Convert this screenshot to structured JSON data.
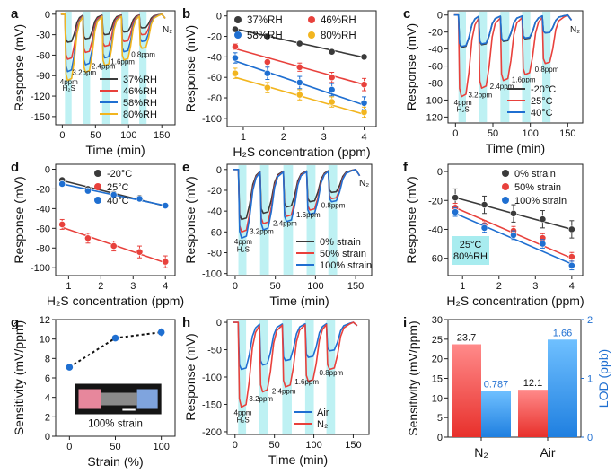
{
  "colors": {
    "black": "#3a3a3a",
    "red": "#e8413c",
    "blue": "#1f6fd1",
    "yellow": "#f2b51f",
    "shade": "#a8ecef"
  },
  "chart_data": [
    {
      "id": "a",
      "type": "line",
      "panel_label": "a",
      "xlabel": "Time (min)",
      "ylabel": "Response (mV)",
      "xlim": [
        -10,
        170
      ],
      "ylim": [
        -162,
        5
      ],
      "xticks": [
        0,
        50,
        100,
        150
      ],
      "yticks": [
        0,
        -30,
        -60,
        -90,
        -120,
        -150
      ],
      "corner_label": "N₂",
      "shade_windows": [
        [
          4,
          14
        ],
        [
          31,
          42
        ],
        [
          60,
          72
        ],
        [
          89,
          100
        ],
        [
          116,
          127
        ]
      ],
      "annotations": [
        {
          "text": "4ppm",
          "x": 10,
          "y": -103
        },
        {
          "text": "H₂S",
          "x": 10,
          "y": -112
        },
        {
          "text": "3.2ppm",
          "x": 33,
          "y": -89
        },
        {
          "text": "2.4ppm",
          "x": 62,
          "y": -80
        },
        {
          "text": "1.6ppm",
          "x": 91,
          "y": -73
        },
        {
          "text": "0.8ppm",
          "x": 122,
          "y": -63
        }
      ],
      "legend": "bottom-right",
      "series": [
        {
          "name": "37%RH",
          "color": "black",
          "depths": [
            -41,
            -36,
            -30,
            -26,
            -20
          ]
        },
        {
          "name": "46%RH",
          "color": "red",
          "depths": [
            -66,
            -56,
            -47,
            -40,
            -30
          ]
        },
        {
          "name": "58%RH",
          "color": "blue",
          "depths": [
            -84,
            -74,
            -64,
            -55,
            -40
          ]
        },
        {
          "name": "80%RH",
          "color": "yellow",
          "depths": [
            -97,
            -85,
            -75,
            -67,
            -50
          ]
        }
      ]
    },
    {
      "id": "b",
      "type": "scatter",
      "panel_label": "b",
      "xlabel": "H₂S concentration (ppm)",
      "ylabel": "Response (mV)",
      "xlim": [
        0.6,
        4.3
      ],
      "ylim": [
        -108,
        5
      ],
      "xticks": [
        1,
        2,
        3,
        4
      ],
      "yticks": [
        0,
        -20,
        -40,
        -60,
        -80,
        -100
      ],
      "legend": "top-two-columns",
      "x": [
        0.8,
        1.6,
        2.4,
        3.2,
        4.0
      ],
      "series": [
        {
          "name": "37%RH",
          "color": "black",
          "values": [
            -13,
            -20,
            -27,
            -35,
            -40
          ],
          "err": [
            1.5,
            1.5,
            1.5,
            2,
            2
          ],
          "fit": [
            -12.7,
            -40.5
          ]
        },
        {
          "name": "46%RH",
          "color": "red",
          "values": [
            -30,
            -45,
            -50,
            -60,
            -67
          ],
          "err": [
            3,
            4,
            4,
            5,
            6
          ],
          "fit": [
            -32,
            -67
          ]
        },
        {
          "name": "58%RH",
          "color": "blue",
          "values": [
            -41,
            -56,
            -65,
            -72,
            -85
          ],
          "err": [
            5,
            6,
            6,
            6,
            6
          ],
          "fit": [
            -44,
            -87
          ]
        },
        {
          "name": "80%RH",
          "color": "yellow",
          "values": [
            -56,
            -70,
            -77,
            -84,
            -94
          ],
          "err": [
            5,
            5,
            5,
            5,
            5
          ],
          "fit": [
            -60,
            -96
          ]
        }
      ]
    },
    {
      "id": "c",
      "type": "line",
      "panel_label": "c",
      "xlabel": "Time (min)",
      "ylabel": "Response (mV)",
      "xlim": [
        -10,
        170
      ],
      "ylim": [
        -127,
        5
      ],
      "xticks": [
        0,
        50,
        100,
        150
      ],
      "yticks": [
        0,
        -20,
        -40,
        -60,
        -80,
        -100,
        -120
      ],
      "corner_label": "N₂",
      "shade_windows": [
        [
          4,
          14
        ],
        [
          31,
          42
        ],
        [
          60,
          72
        ],
        [
          89,
          100
        ],
        [
          116,
          127
        ]
      ],
      "annotations": [
        {
          "text": "4ppm",
          "x": 10,
          "y": -106
        },
        {
          "text": "H₂S",
          "x": 10,
          "y": -114
        },
        {
          "text": "3.2ppm",
          "x": 33,
          "y": -97
        },
        {
          "text": "2.4ppm",
          "x": 62,
          "y": -87
        },
        {
          "text": "1.6ppm",
          "x": 91,
          "y": -79
        },
        {
          "text": "0.8ppm",
          "x": 122,
          "y": -67
        }
      ],
      "legend": "bottom-right",
      "series": [
        {
          "name": "-20°C",
          "color": "black",
          "depths": [
            -38,
            -35,
            -31,
            -28,
            -21
          ]
        },
        {
          "name": "25°C",
          "color": "red",
          "depths": [
            -96,
            -86,
            -77,
            -70,
            -57
          ]
        },
        {
          "name": "40°C",
          "color": "blue",
          "depths": [
            -37,
            -34,
            -30,
            -27,
            -21
          ]
        }
      ]
    },
    {
      "id": "d",
      "type": "scatter",
      "panel_label": "d",
      "xlabel": "H₂S concentration (ppm)",
      "ylabel": "Response (mV)",
      "xlim": [
        0.6,
        4.3
      ],
      "ylim": [
        -108,
        5
      ],
      "xticks": [
        1,
        2,
        3,
        4
      ],
      "yticks": [
        0,
        -20,
        -40,
        -60,
        -80,
        -100
      ],
      "legend": "top-right",
      "x": [
        0.8,
        1.6,
        2.4,
        3.2,
        4.0
      ],
      "series": [
        {
          "name": "-20°C",
          "color": "black",
          "values": [
            -11,
            -20,
            -25,
            -29,
            -37
          ],
          "err": [
            2,
            2,
            2,
            2,
            2
          ],
          "fit": [
            -11.5,
            -37.5
          ]
        },
        {
          "name": "25°C",
          "color": "red",
          "values": [
            -56,
            -70,
            -78,
            -84,
            -94
          ],
          "err": [
            5,
            5,
            5,
            6,
            6
          ],
          "fit": [
            -59,
            -95
          ]
        },
        {
          "name": "40°C",
          "color": "blue",
          "values": [
            -15,
            -22,
            -26,
            -30,
            -37
          ],
          "err": [
            2,
            2,
            2,
            2,
            2
          ],
          "fit": [
            -15,
            -37
          ]
        }
      ]
    },
    {
      "id": "e",
      "type": "line",
      "panel_label": "e",
      "xlabel": "Time (min)",
      "ylabel": "Response (mV)",
      "xlim": [
        -10,
        170
      ],
      "ylim": [
        -102,
        5
      ],
      "xticks": [
        0,
        50,
        100,
        150
      ],
      "yticks": [
        0,
        -20,
        -40,
        -60,
        -80,
        -100
      ],
      "corner_label": "N₂",
      "shade_windows": [
        [
          4,
          14
        ],
        [
          31,
          42
        ],
        [
          60,
          72
        ],
        [
          89,
          100
        ],
        [
          116,
          127
        ]
      ],
      "annotations": [
        {
          "text": "4ppm",
          "x": 10,
          "y": -72
        },
        {
          "text": "H₂S",
          "x": 10,
          "y": -79
        },
        {
          "text": "3.2ppm",
          "x": 33,
          "y": -62
        },
        {
          "text": "2.4ppm",
          "x": 62,
          "y": -54
        },
        {
          "text": "1.6ppm",
          "x": 91,
          "y": -46
        },
        {
          "text": "0.8ppm",
          "x": 122,
          "y": -37
        }
      ],
      "legend": "bottom-right",
      "series": [
        {
          "name": "0% strain",
          "color": "black",
          "depths": [
            -48,
            -42,
            -36,
            -31,
            -22
          ]
        },
        {
          "name": "50% strain",
          "color": "red",
          "depths": [
            -60,
            -52,
            -45,
            -39,
            -28
          ]
        },
        {
          "name": "100% strain",
          "color": "blue",
          "depths": [
            -66,
            -58,
            -50,
            -43,
            -31
          ]
        }
      ]
    },
    {
      "id": "f",
      "type": "scatter",
      "panel_label": "f",
      "xlabel": "H₂S concentration (ppm)",
      "ylabel": "Response (mV)",
      "xlim": [
        0.6,
        4.3
      ],
      "ylim": [
        -72,
        5
      ],
      "xticks": [
        1,
        2,
        3,
        4
      ],
      "yticks": [
        0,
        -20,
        -40,
        -60
      ],
      "legend": "top-right",
      "boxed_note": [
        "25°C",
        "80%RH"
      ],
      "x": [
        0.8,
        1.6,
        2.4,
        3.2,
        4.0
      ],
      "series": [
        {
          "name": "0% strain",
          "color": "black",
          "values": [
            -18,
            -23,
            -29,
            -33,
            -40
          ],
          "err": [
            6,
            6,
            6,
            6,
            6
          ],
          "fit": [
            -18,
            -40
          ]
        },
        {
          "name": "50% strain",
          "color": "red",
          "values": [
            -25,
            -37,
            -41,
            -46,
            -59
          ],
          "err": [
            3,
            3,
            3,
            3,
            3
          ],
          "fit": [
            -25,
            -60
          ]
        },
        {
          "name": "100% strain",
          "color": "blue",
          "values": [
            -28,
            -39,
            -44,
            -50,
            -65
          ],
          "err": [
            3,
            3,
            3,
            3,
            3
          ],
          "fit": [
            -29,
            -64
          ]
        }
      ]
    },
    {
      "id": "g",
      "type": "scatter",
      "panel_label": "g",
      "xlabel": "Strain (%)",
      "ylabel": "Sensitivity (mV/ppm)",
      "xlim": [
        -15,
        115
      ],
      "ylim": [
        0,
        12
      ],
      "xticks": [
        0,
        50,
        100
      ],
      "yticks": [
        0,
        2,
        4,
        6,
        8,
        10,
        12
      ],
      "inset_caption": "100% strain",
      "x": [
        0,
        50,
        100
      ],
      "series": [
        {
          "name": "sensitivity",
          "color": "blue",
          "values": [
            7.1,
            10.1,
            10.7
          ],
          "err": [
            0.3,
            0.3,
            0.4
          ]
        }
      ]
    },
    {
      "id": "h",
      "type": "line",
      "panel_label": "h",
      "xlabel": "Time (min)",
      "ylabel": "Response (mV)",
      "xlim": [
        -10,
        170
      ],
      "ylim": [
        -205,
        5
      ],
      "xticks": [
        0,
        50,
        100,
        150
      ],
      "yticks": [
        0,
        -50,
        -100,
        -150,
        -200
      ],
      "shade_windows": [
        [
          4,
          14
        ],
        [
          31,
          42
        ],
        [
          60,
          72
        ],
        [
          89,
          100
        ],
        [
          116,
          127
        ]
      ],
      "annotations": [
        {
          "text": "4ppm",
          "x": 10,
          "y": -170
        },
        {
          "text": "H₂S",
          "x": 10,
          "y": -183
        },
        {
          "text": "3.2ppm",
          "x": 33,
          "y": -144
        },
        {
          "text": "2.4ppm",
          "x": 62,
          "y": -130
        },
        {
          "text": "1.6ppm",
          "x": 91,
          "y": -113
        },
        {
          "text": "0.8ppm",
          "x": 122,
          "y": -97
        }
      ],
      "legend": "bottom-right",
      "series": [
        {
          "name": "Air",
          "color": "blue",
          "depths": [
            -86,
            -78,
            -70,
            -64,
            -52
          ]
        },
        {
          "name": "N₂",
          "color": "red",
          "depths": [
            -155,
            -127,
            -118,
            -108,
            -86
          ]
        }
      ]
    },
    {
      "id": "i",
      "type": "bar",
      "panel_label": "i",
      "categories": [
        "N₂",
        "Air"
      ],
      "ylabel": "Sensitivity (mV/ppm)",
      "ylabel_right": "LOD (ppb)",
      "ylim": [
        0,
        30
      ],
      "ylim_right": [
        0,
        2
      ],
      "yticks": [
        0,
        5,
        10,
        15,
        20,
        25,
        30
      ],
      "yticks_right": [
        0,
        1,
        2
      ],
      "series": [
        {
          "name": "Sensitivity",
          "color": "red",
          "axis": "left",
          "values": [
            23.7,
            12.1
          ],
          "labels": [
            "23.7",
            "12.1"
          ]
        },
        {
          "name": "LOD",
          "color": "blue",
          "axis": "right",
          "values": [
            0.787,
            1.66
          ],
          "labels": [
            "0.787",
            "1.66"
          ]
        }
      ]
    }
  ]
}
